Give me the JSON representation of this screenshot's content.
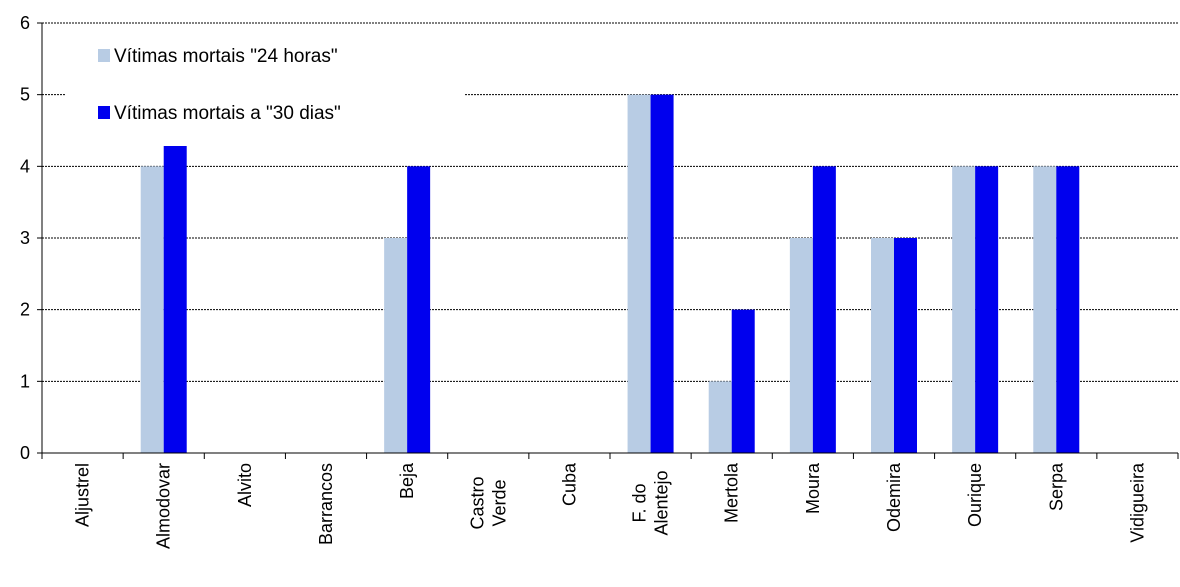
{
  "chart_data": {
    "type": "bar",
    "categories": [
      "Aljustrel",
      "Almodovar",
      "Alvito",
      "Barrancos",
      "Beja",
      "Castro\nVerde",
      "Cuba",
      "F. do\nAlentejo",
      "Mertola",
      "Moura",
      "Odemira",
      "Ourique",
      "Serpa",
      "Vidigueira"
    ],
    "series": [
      {
        "name": "Vítimas mortais \"24 horas\"",
        "color": "#b8cce4",
        "values": [
          0,
          4,
          0,
          0,
          3,
          0,
          0,
          5,
          1,
          3,
          3,
          4,
          4,
          0
        ]
      },
      {
        "name": "Vítimas mortais a \"30 dias\"",
        "color": "#0000ee",
        "values": [
          0,
          4.3,
          0,
          0,
          4,
          0,
          0,
          5,
          2,
          4,
          3,
          4,
          4,
          0
        ]
      }
    ],
    "ylim": [
      0,
      6
    ],
    "yticks": [
      0,
      1,
      2,
      3,
      4,
      5,
      6
    ],
    "title": "",
    "xlabel": "",
    "ylabel": "",
    "grid": true,
    "legend_position": "top-left"
  }
}
